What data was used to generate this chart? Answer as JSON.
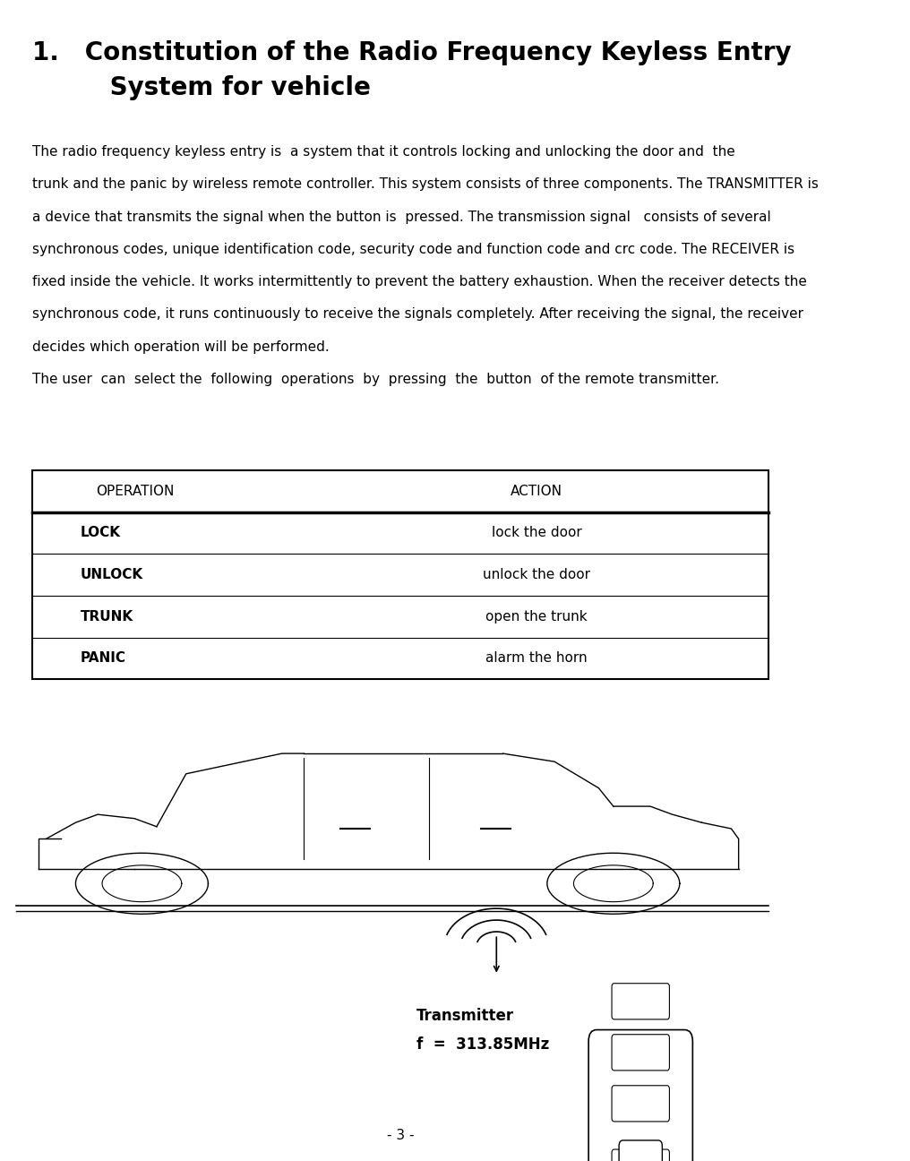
{
  "title_line1": "1.   Constitution of the Radio Frequency Keyless Entry",
  "title_line2": "         System for vehicle",
  "body_text": "The radio frequency keyless entry is  a system that it controls locking and unlocking the door and  the\ntrunk and the panic by wireless remote controller. This system consists of three components. The TRANSMITTER is\na device that transmits the signal when the button is  pressed. The transmission signal   consists of several\nsynchronous codes, unique identification code, security code and function code and crc code. The RECEIVER is\nfixed inside the vehicle. It works intermittently to prevent the battery exhaustion. When the receiver detects the\nsynchronous code, it runs continuously to receive the signals completely. After receiving the signal, the receiver\ndecides which operation will be performed.\nThe user  can  select the  following  operations  by  pressing  the  button  of the remote transmitter.",
  "table_header": [
    "OPERATION",
    "ACTION"
  ],
  "table_rows": [
    [
      "LOCK",
      "lock the door"
    ],
    [
      "UNLOCK",
      "unlock the door"
    ],
    [
      "TRUNK",
      "open the trunk"
    ],
    [
      "PANIC",
      "alarm the horn"
    ]
  ],
  "transmitter_label": "Transmitter",
  "freq_label": "f  =  313.85MHz",
  "page_number": "- 3 -",
  "bg_color": "#ffffff",
  "text_color": "#000000",
  "title_fontsize": 20,
  "body_fontsize": 11,
  "table_header_fontsize": 11,
  "table_row_fontsize": 11
}
